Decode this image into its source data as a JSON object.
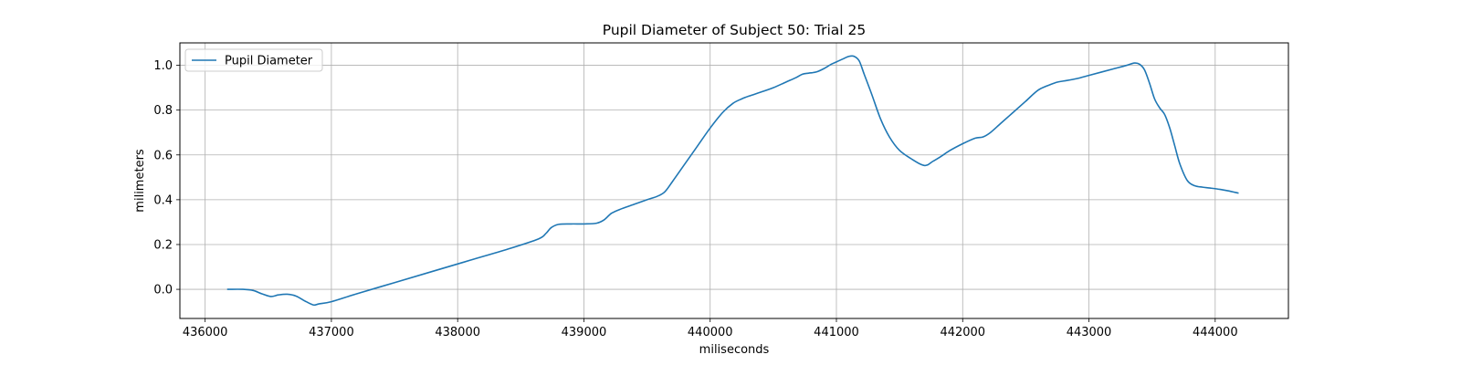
{
  "chart_data": {
    "type": "line",
    "title": "Pupil Diameter of Subject 50: Trial 25",
    "xlabel": "miliseconds",
    "ylabel": "milimeters",
    "xlim": [
      435800,
      444580
    ],
    "ylim": [
      -0.13,
      1.1
    ],
    "xticks": [
      436000,
      437000,
      438000,
      439000,
      440000,
      441000,
      442000,
      443000,
      444000
    ],
    "yticks": [
      0.0,
      0.2,
      0.4,
      0.6,
      0.8,
      1.0
    ],
    "xtick_labels": [
      "436000",
      "437000",
      "438000",
      "439000",
      "440000",
      "441000",
      "442000",
      "443000",
      "444000"
    ],
    "ytick_labels": [
      "0.0",
      "0.2",
      "0.4",
      "0.6",
      "0.8",
      "1.0"
    ],
    "grid": true,
    "legend": {
      "position": "top-left"
    },
    "series": [
      {
        "name": "Pupil Diameter",
        "color": "#1f77b4",
        "x": [
          436180,
          436300,
          436380,
          436450,
          436520,
          436580,
          436650,
          436720,
          436800,
          436860,
          436900,
          437000,
          437200,
          437500,
          437800,
          438100,
          438400,
          438640,
          438700,
          438740,
          438800,
          438900,
          439000,
          439100,
          439160,
          439220,
          439300,
          439400,
          439500,
          439580,
          439640,
          439700,
          439800,
          439900,
          440000,
          440100,
          440180,
          440250,
          440320,
          440400,
          440500,
          440600,
          440680,
          440730,
          440780,
          440840,
          440900,
          440960,
          441000,
          441050,
          441100,
          441140,
          441180,
          441220,
          441280,
          441350,
          441420,
          441500,
          441600,
          441680,
          441720,
          441760,
          441820,
          441900,
          442000,
          442100,
          442160,
          442220,
          442300,
          442400,
          442500,
          442600,
          442700,
          442750,
          442800,
          442900,
          443000,
          443100,
          443200,
          443300,
          443360,
          443400,
          443440,
          443480,
          443520,
          443560,
          443600,
          443640,
          443680,
          443720,
          443780,
          443840,
          443900,
          443960,
          444040,
          444100,
          444180
        ],
        "y": [
          0.0,
          0.0,
          -0.005,
          -0.02,
          -0.032,
          -0.025,
          -0.022,
          -0.03,
          -0.055,
          -0.07,
          -0.065,
          -0.055,
          -0.02,
          0.03,
          0.08,
          0.13,
          0.18,
          0.225,
          0.25,
          0.275,
          0.29,
          0.292,
          0.292,
          0.295,
          0.31,
          0.34,
          0.36,
          0.38,
          0.4,
          0.415,
          0.435,
          0.48,
          0.56,
          0.64,
          0.72,
          0.79,
          0.83,
          0.85,
          0.865,
          0.88,
          0.9,
          0.925,
          0.945,
          0.96,
          0.965,
          0.97,
          0.985,
          1.005,
          1.015,
          1.028,
          1.04,
          1.04,
          1.02,
          0.96,
          0.87,
          0.76,
          0.68,
          0.62,
          0.58,
          0.555,
          0.555,
          0.57,
          0.59,
          0.62,
          0.65,
          0.675,
          0.68,
          0.7,
          0.74,
          0.79,
          0.84,
          0.89,
          0.915,
          0.925,
          0.93,
          0.94,
          0.955,
          0.97,
          0.985,
          1.0,
          1.01,
          1.005,
          0.98,
          0.92,
          0.85,
          0.81,
          0.78,
          0.72,
          0.64,
          0.56,
          0.485,
          0.462,
          0.456,
          0.452,
          0.446,
          0.44,
          0.43
        ]
      }
    ]
  }
}
